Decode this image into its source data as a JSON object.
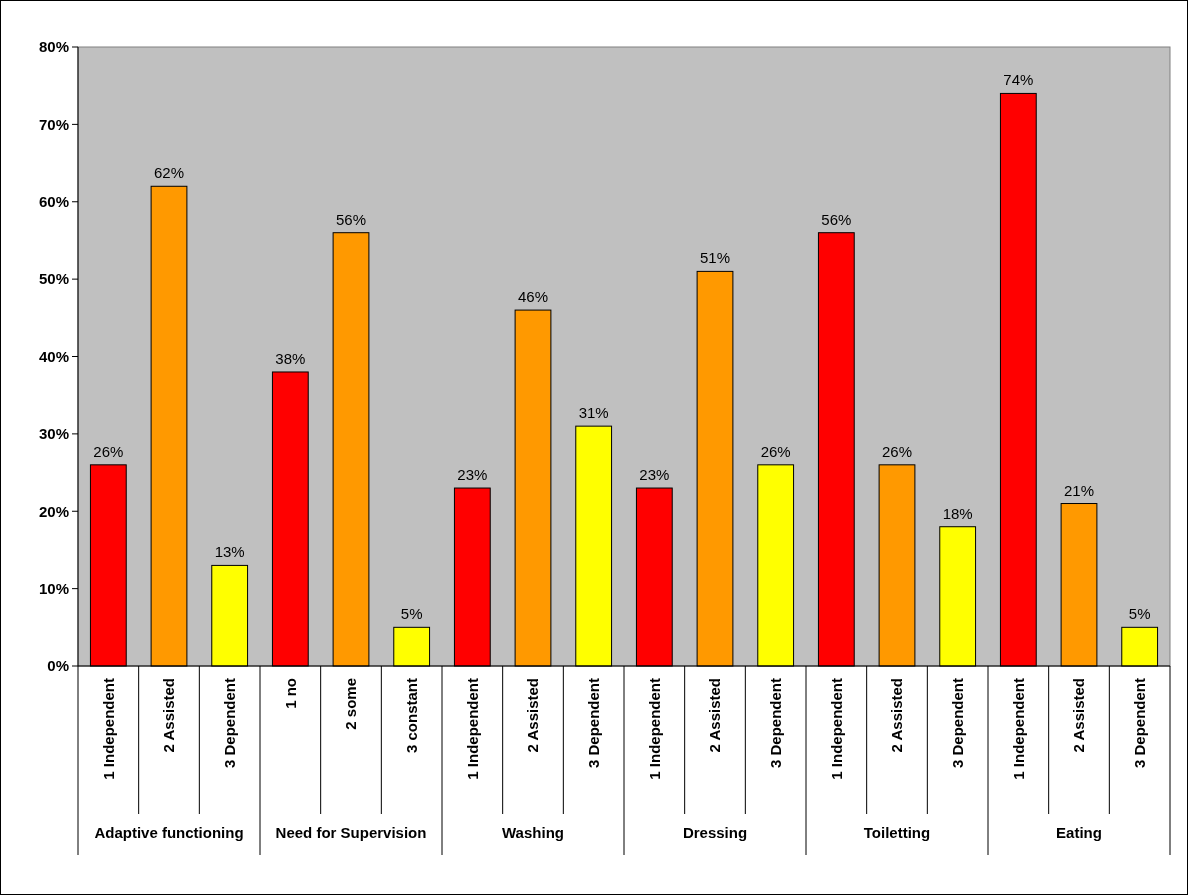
{
  "chart_data": {
    "type": "bar",
    "categories": [
      "1 Independent",
      "2 Assisted",
      "3 Dependent",
      "1 no",
      "2 some",
      "3 constant",
      "1 Independent",
      "2 Assisted",
      "3 Dependent",
      "1 Independent",
      "2 Assisted",
      "3 Dependent",
      "1 Independent",
      "2 Assisted",
      "3 Dependent",
      "1 Independent",
      "2 Assisted",
      "3 Dependent"
    ],
    "values": [
      26,
      62,
      13,
      38,
      56,
      5,
      23,
      46,
      31,
      23,
      51,
      26,
      56,
      26,
      18,
      74,
      21,
      5
    ],
    "value_labels": [
      "26%",
      "62%",
      "13%",
      "38%",
      "56%",
      "5%",
      "23%",
      "46%",
      "31%",
      "23%",
      "51%",
      "26%",
      "56%",
      "26%",
      "18%",
      "74%",
      "21%",
      "5%"
    ],
    "colors": [
      "#ff0000",
      "#ff9900",
      "#ffff00",
      "#ff0000",
      "#ff9900",
      "#ffff00",
      "#ff0000",
      "#ff9900",
      "#ffff00",
      "#ff0000",
      "#ff9900",
      "#ffff00",
      "#ff0000",
      "#ff9900",
      "#ffff00",
      "#ff0000",
      "#ff9900",
      "#ffff00"
    ],
    "annotations": [
      "Adaptive functioning",
      "Need for Supervision",
      "Washing",
      "Dressing",
      "Toiletting",
      "Eating"
    ],
    "ylim": [
      0,
      80
    ],
    "yticks": [
      {
        "value": 0,
        "label": "0%"
      },
      {
        "value": 10,
        "label": "10%"
      },
      {
        "value": 20,
        "label": "20%"
      },
      {
        "value": 30,
        "label": "30%"
      },
      {
        "value": 40,
        "label": "40%"
      },
      {
        "value": 50,
        "label": "50%"
      },
      {
        "value": 60,
        "label": "60%"
      },
      {
        "value": 70,
        "label": "70%"
      },
      {
        "value": 80,
        "label": "80%"
      }
    ],
    "grid": false
  }
}
